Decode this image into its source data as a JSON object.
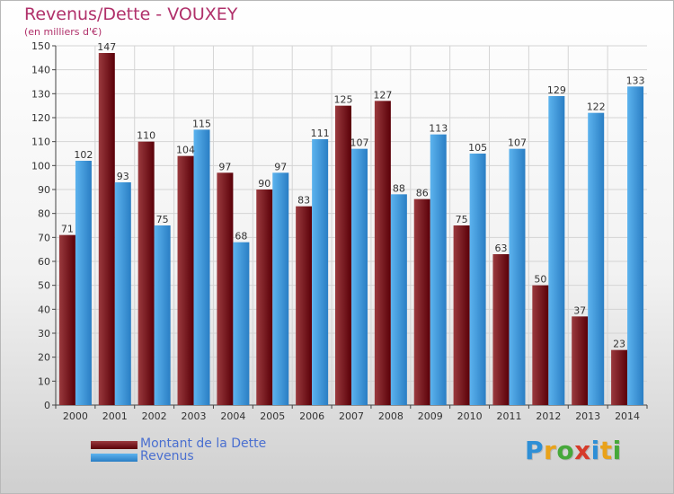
{
  "title": "Revenus/Dette - VOUXEY",
  "subtitle": "(en milliers d'€)",
  "colors": {
    "title": "#b0306a",
    "dette_dark": "#5a0008",
    "dette_light": "#9a3a3e",
    "revenus_dark": "#2a7ec4",
    "revenus_light": "#5cb3ee",
    "legend_text": "#4a6fd0"
  },
  "chart_data": {
    "type": "bar",
    "title": "Revenus/Dette - VOUXEY",
    "subtitle": "(en milliers d'€)",
    "categories": [
      "2000",
      "2001",
      "2002",
      "2003",
      "2004",
      "2005",
      "2006",
      "2007",
      "2008",
      "2009",
      "2010",
      "2011",
      "2012",
      "2013",
      "2014"
    ],
    "series": [
      {
        "name": "Montant de la Dette",
        "values": [
          71,
          147,
          110,
          104,
          97,
          90,
          83,
          125,
          127,
          86,
          75,
          63,
          50,
          37,
          23
        ]
      },
      {
        "name": "Revenus",
        "values": [
          102,
          93,
          75,
          115,
          68,
          97,
          111,
          107,
          88,
          113,
          105,
          107,
          129,
          122,
          133
        ]
      }
    ],
    "ylim": [
      0,
      150
    ],
    "yticks": [
      0,
      10,
      20,
      30,
      40,
      50,
      60,
      70,
      80,
      90,
      100,
      110,
      120,
      130,
      140,
      150
    ],
    "grid": true,
    "legend_position": "bottom-left"
  },
  "legend": {
    "items": [
      {
        "label": "Montant de la Dette"
      },
      {
        "label": "Revenus"
      }
    ]
  },
  "logo": {
    "letters": [
      "P",
      "r",
      "o",
      "x",
      "i",
      "t",
      "i"
    ],
    "colors": [
      "#2e8fd6",
      "#e9a21a",
      "#46a83a",
      "#d63b2a",
      "#2e8fd6",
      "#e9a21a",
      "#46a83a"
    ]
  }
}
